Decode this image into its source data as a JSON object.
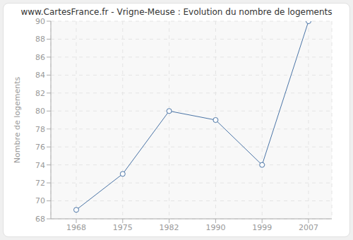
{
  "chart_data": {
    "type": "line",
    "title": "www.CartesFrance.fr - Vrigne-Meuse : Evolution du nombre de logements",
    "y_label": "Nombre de logements",
    "categories": [
      "1968",
      "1975",
      "1982",
      "1990",
      "1999",
      "2007"
    ],
    "values": [
      69,
      73,
      80,
      79,
      74,
      90
    ],
    "color": "#4a74a6",
    "marker": "circle",
    "ylim": [
      68,
      90
    ],
    "yticks": [
      68,
      70,
      72,
      74,
      76,
      78,
      80,
      82,
      84,
      86,
      88,
      90
    ],
    "grid": true
  }
}
